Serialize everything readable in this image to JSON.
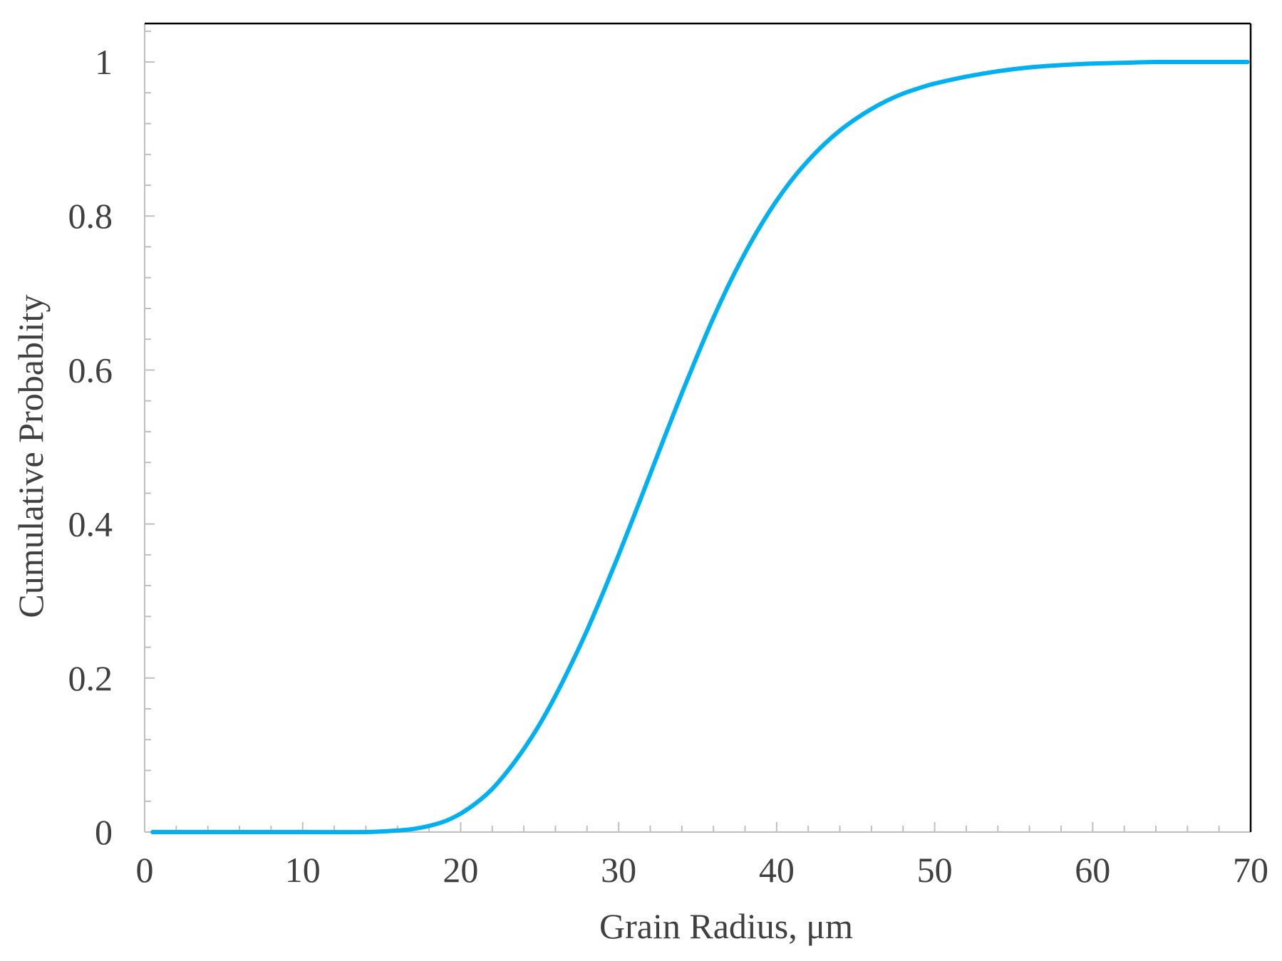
{
  "chart_data": {
    "type": "line",
    "xlabel": "Grain Radius, μm",
    "ylabel": "Cumulative Probablity",
    "xlim": [
      0,
      70
    ],
    "ylim": [
      0,
      1.05
    ],
    "x_ticks": [
      "0",
      "10",
      "20",
      "30",
      "40",
      "50",
      "60",
      "70"
    ],
    "y_ticks": [
      "0",
      "0.2",
      "0.4",
      "0.6",
      "0.8",
      "1"
    ],
    "grid": false,
    "legend": "none",
    "line_color": "#00b0f0",
    "series": [
      {
        "x": [
          0.5,
          5,
          10,
          14,
          16,
          17,
          18,
          19,
          20,
          21,
          22,
          23,
          24,
          25,
          26,
          27,
          28,
          29,
          30,
          31,
          32,
          33,
          34,
          35,
          36,
          37,
          38,
          39,
          40,
          41,
          42,
          43,
          44,
          45,
          46,
          47,
          48,
          49,
          50,
          52,
          54,
          56,
          58,
          60,
          62,
          64,
          66,
          68,
          69.8
        ],
        "y": [
          0.0,
          0.0,
          0.0,
          0.0,
          0.002,
          0.004,
          0.008,
          0.014,
          0.024,
          0.038,
          0.056,
          0.08,
          0.108,
          0.14,
          0.177,
          0.218,
          0.262,
          0.31,
          0.36,
          0.412,
          0.465,
          0.518,
          0.57,
          0.62,
          0.668,
          0.712,
          0.752,
          0.788,
          0.82,
          0.848,
          0.872,
          0.893,
          0.911,
          0.926,
          0.939,
          0.95,
          0.959,
          0.966,
          0.972,
          0.981,
          0.988,
          0.993,
          0.996,
          0.998,
          0.999,
          1.0,
          1.0,
          1.0,
          1.0
        ]
      }
    ]
  }
}
